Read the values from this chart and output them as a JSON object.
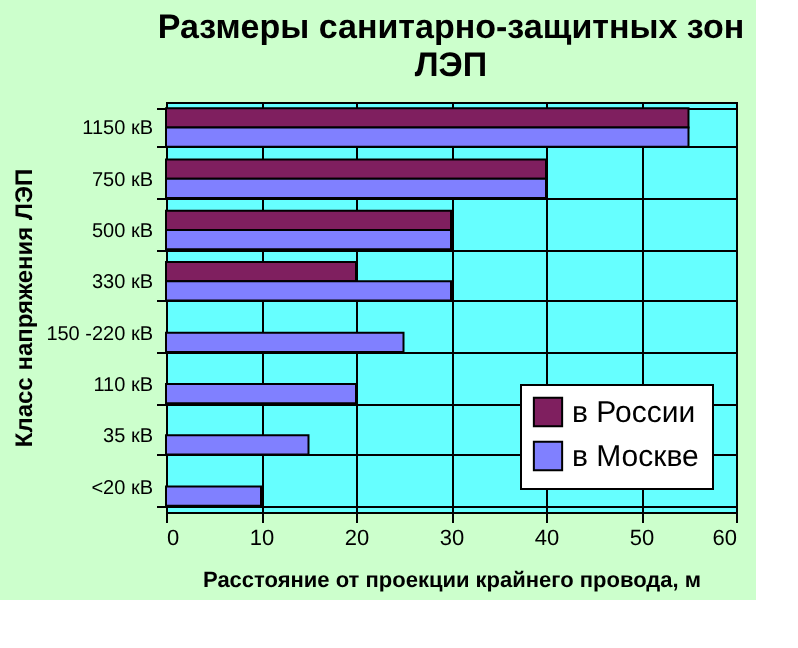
{
  "chart_data": {
    "type": "bar",
    "orientation": "horizontal",
    "title": "Размеры санитарно-защитных зон ЛЭП",
    "xlabel": "Расстояние от проекции крайнего провода, м",
    "ylabel": "Класс напряжения ЛЭП",
    "categories": [
      "1150 кВ",
      "750 кВ",
      "500 кВ",
      "330 кВ",
      "150 -220 кВ",
      "110 кВ",
      "35 кВ",
      "<20 кВ"
    ],
    "series": [
      {
        "name": "в России",
        "color": "#7f1f5f",
        "values": [
          55,
          40,
          30,
          20,
          null,
          null,
          null,
          null
        ]
      },
      {
        "name": "в Москве",
        "color": "#8080ff",
        "values": [
          55,
          40,
          30,
          30,
          25,
          20,
          15,
          10
        ]
      }
    ],
    "xlim": [
      0,
      60
    ],
    "xticks": [
      0,
      10,
      20,
      30,
      40,
      50,
      60
    ],
    "grid": true,
    "legend": "bottom right"
  }
}
